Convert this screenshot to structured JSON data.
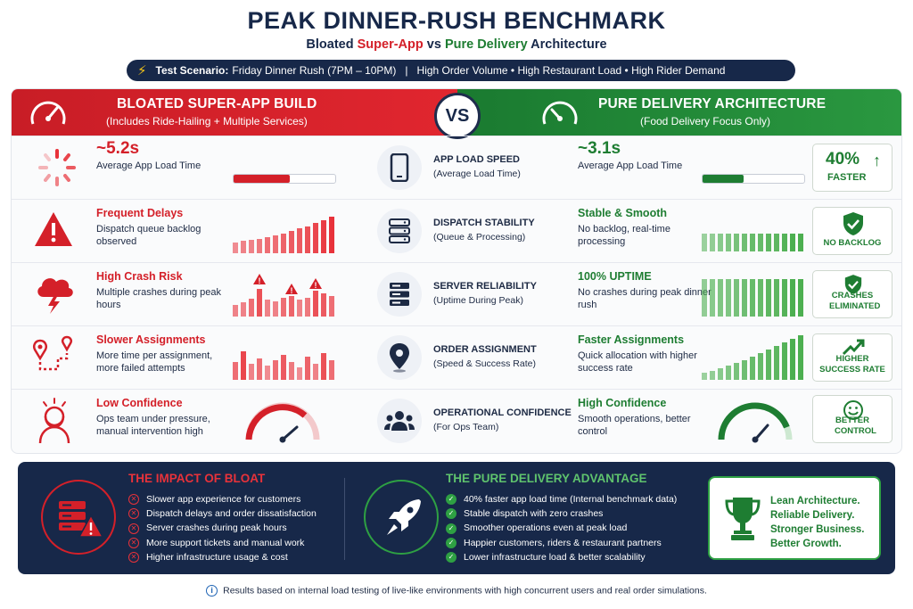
{
  "header": {
    "title": "PEAK DINNER-RUSH BENCHMARK",
    "subtitle_part1": "Bloated",
    "subtitle_red": "Super-App",
    "subtitle_part2": "vs",
    "subtitle_green": "Pure Delivery",
    "subtitle_part3": "Architecture"
  },
  "scenario": {
    "label": "Test Scenario:",
    "text": "Friday Dinner Rush (7PM – 10PM)   |   High Order Volume • High Restaurant Load • High Rider Demand"
  },
  "left_header": {
    "title": "BLOATED SUPER-APP BUILD",
    "subtitle": "(Includes Ride-Hailing + Multiple Services)"
  },
  "right_header": {
    "title": "PURE DELIVERY ARCHITECTURE",
    "subtitle": "(Food Delivery Focus Only)"
  },
  "vs_label": "VS",
  "rows": [
    {
      "left_title": "~5.2s",
      "left_desc": "Average App Load Time",
      "mid_title": "APP LOAD SPEED",
      "mid_sub": "(Average Load Time)",
      "right_title": "~3.1s",
      "right_desc": "Average App Load Time",
      "badge_big": "40%",
      "badge_label": "FASTER",
      "left_progress": 0.55,
      "right_progress": 0.4
    },
    {
      "left_title": "Frequent Delays",
      "left_desc": "Dispatch queue backlog observed",
      "mid_title": "DISPATCH STABILITY",
      "mid_sub": "(Queue & Processing)",
      "right_title": "Stable & Smooth",
      "right_desc": "No backlog, real-time processing",
      "badge_label": "NO BACKLOG"
    },
    {
      "left_title": "High Crash Risk",
      "left_desc": "Multiple crashes during peak hours",
      "mid_title": "SERVER RELIABILITY",
      "mid_sub": "(Uptime During Peak)",
      "right_title": "100% UPTIME",
      "right_desc": "No crashes during peak dinner rush",
      "badge_label": "CRASHES ELIMINATED"
    },
    {
      "left_title": "Slower Assignments",
      "left_desc": "More time per assignment, more failed attempts",
      "mid_title": "ORDER ASSIGNMENT",
      "mid_sub": "(Speed & Success Rate)",
      "right_title": "Faster Assignments",
      "right_desc": "Quick allocation with higher success rate",
      "badge_label": "HIGHER SUCCESS RATE"
    },
    {
      "left_title": "Low Confidence",
      "left_desc": "Ops team under pressure, manual intervention high",
      "mid_title": "OPERATIONAL CONFIDENCE",
      "mid_sub": "(For Ops Team)",
      "right_title": "High Confidence",
      "right_desc": "Smooth operations, better control",
      "badge_label": "BETTER CONTROL"
    }
  ],
  "impact": {
    "title": "THE IMPACT OF BLOAT",
    "items": [
      "Slower app experience for customers",
      "Dispatch delays and order dissatisfaction",
      "Server crashes during peak hours",
      "More support tickets and manual work",
      "Higher infrastructure usage & cost"
    ]
  },
  "advantage": {
    "title": "THE PURE DELIVERY ADVANTAGE",
    "items": [
      "40% faster app load time (Internal benchmark data)",
      "Stable dispatch with zero crashes",
      "Smoother operations even at peak load",
      "Happier customers, riders & restaurant partners",
      "Lower infrastructure load & better scalability"
    ]
  },
  "lean": {
    "line1": "Lean Architecture.",
    "line2": "Reliable Delivery.",
    "line3": "Stronger Business.",
    "line4": "Better Growth."
  },
  "footnote": "Results based on internal load testing of live-like environments with high concurrent users and real order simulations.",
  "colors": {
    "red": "#d42029",
    "green": "#1e7d32",
    "navy": "#172849"
  },
  "icons": {
    "scenario": "lightning-icon",
    "left_header": "speedometer-icon",
    "right_header": "speedometer-icon",
    "mid": [
      "smartphone-icon",
      "server-icon",
      "server-stack-icon",
      "location-pin-icon",
      "team-icon"
    ],
    "impact": "server-warning-icon",
    "advantage": "rocket-icon",
    "lean": "trophy-icon"
  }
}
